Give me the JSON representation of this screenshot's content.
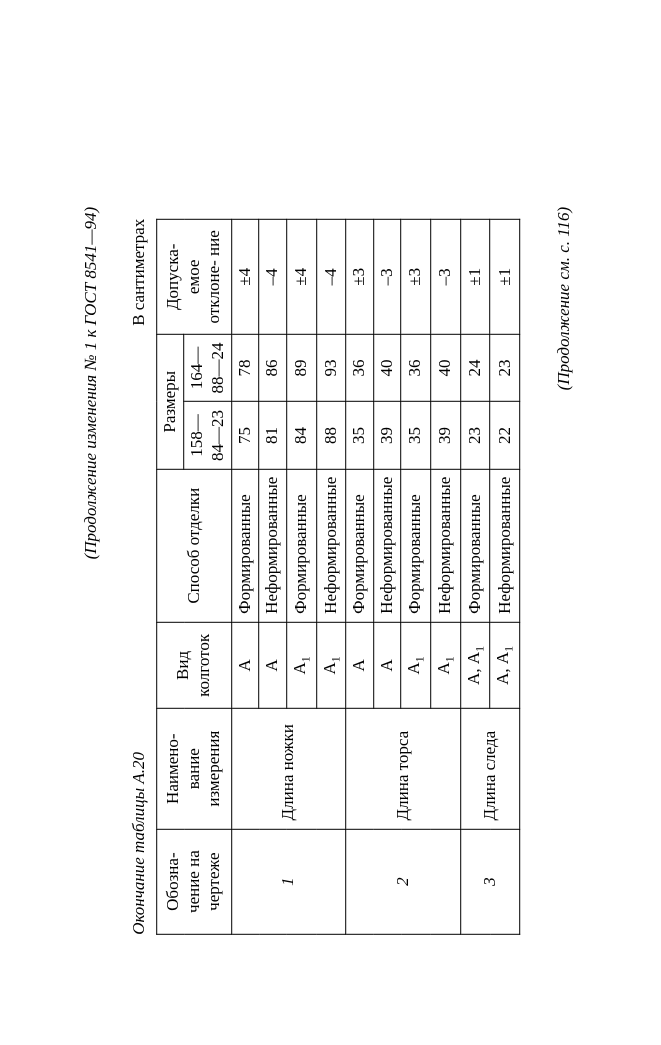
{
  "header_right": "(Продолжение изменения № 1 к ГОСТ 8541—94)",
  "caption_left": "Окончание таблицы А.20",
  "caption_right": "В сантиметрах",
  "footer_right": "(Продолжение см. с. 116)",
  "columns": {
    "c1": "Обозна-\nчение на\nчертеже",
    "c2": "Наимено-\nвание\nизмерения",
    "c3": "Вид\nколготок",
    "c4": "Способ отделки",
    "c5": "Размеры",
    "c5a": "158—84—23",
    "c5b": "164—88—24",
    "c6": "Допуска-\nемое\nотклоне-\nние"
  },
  "groups": [
    {
      "num": "1",
      "name": "Длина\nножки",
      "rows": [
        {
          "kind": "А",
          "method": "Формированные",
          "s1": "75",
          "s2": "78",
          "tol": "±4"
        },
        {
          "kind": "А",
          "method": "Неформированные",
          "s1": "81",
          "s2": "86",
          "tol": "–4"
        },
        {
          "kind": "А1",
          "method": "Формированные",
          "s1": "84",
          "s2": "89",
          "tol": "±4"
        },
        {
          "kind": "А1",
          "method": "Неформированные",
          "s1": "88",
          "s2": "93",
          "tol": "–4"
        }
      ]
    },
    {
      "num": "2",
      "name": "Длина\nторса",
      "rows": [
        {
          "kind": "А",
          "method": "Формированные",
          "s1": "35",
          "s2": "36",
          "tol": "±3"
        },
        {
          "kind": "А",
          "method": "Неформированные",
          "s1": "39",
          "s2": "40",
          "tol": "–3"
        },
        {
          "kind": "А1",
          "method": "Формированные",
          "s1": "35",
          "s2": "36",
          "tol": "±3"
        },
        {
          "kind": "А1",
          "method": "Неформированные",
          "s1": "39",
          "s2": "40",
          "tol": "–3"
        }
      ]
    },
    {
      "num": "3",
      "name": "Длина\nследа",
      "rows": [
        {
          "kind": "А, А1",
          "method": "Формированные",
          "s1": "23",
          "s2": "24",
          "tol": "±1"
        },
        {
          "kind": "А, А1",
          "method": "Неформированные",
          "s1": "22",
          "s2": "23",
          "tol": "±1"
        }
      ]
    }
  ]
}
